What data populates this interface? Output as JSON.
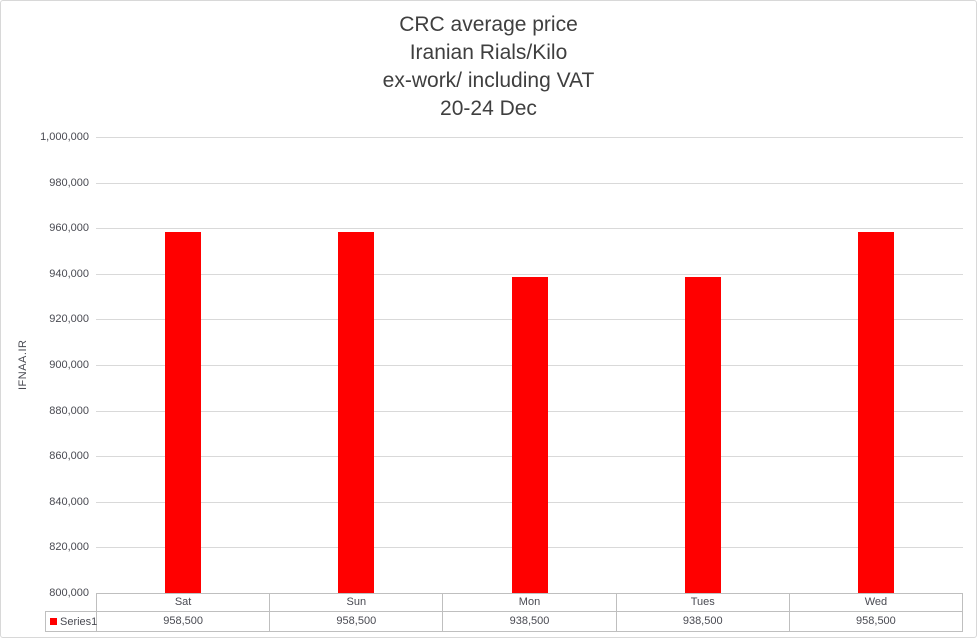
{
  "title": {
    "lines": [
      "CRC average price",
      "Iranian Rials/Kilo",
      "ex-work/ including VAT",
      "20-24 Dec"
    ]
  },
  "y_axis": {
    "title": "IFNAA.IR"
  },
  "legend": {
    "series_label": "Series1",
    "marker_color": "#ff0000"
  },
  "chart_data": {
    "type": "bar",
    "title": "CRC average price Iranian Rials/Kilo ex-work/ including VAT 20-24 Dec",
    "categories": [
      "Sat",
      "Sun",
      "Mon",
      "Tues",
      "Wed"
    ],
    "series": [
      {
        "name": "Series1",
        "values": [
          958500,
          958500,
          938500,
          938500,
          958500
        ]
      }
    ],
    "xlabel": "",
    "ylabel": "IFNAA.IR",
    "ylim": [
      800000,
      1000000
    ],
    "ytick_step": 20000,
    "ytick_labels": [
      "800,000",
      "820,000",
      "840,000",
      "860,000",
      "880,000",
      "900,000",
      "920,000",
      "940,000",
      "960,000",
      "980,000",
      "1,000,000"
    ],
    "bar_color": "#ff0000",
    "gridline_color": "#d9d9d9",
    "grid": true,
    "legend_position": "bottom-left",
    "data_table": true
  }
}
